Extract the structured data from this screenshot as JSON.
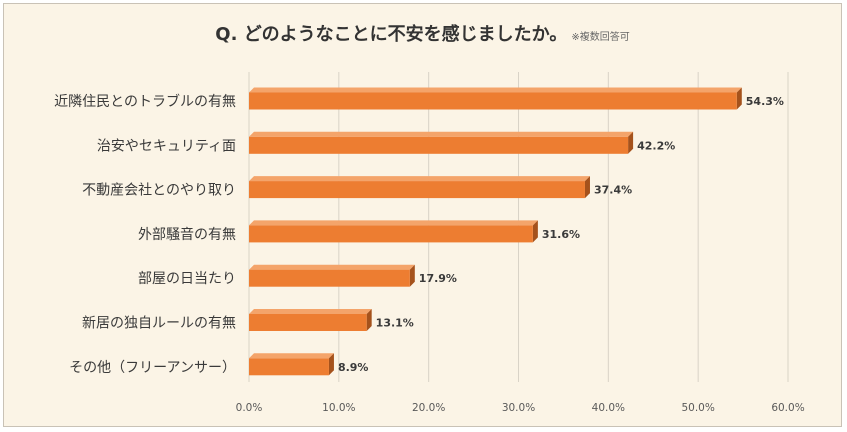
{
  "chart_data": {
    "type": "bar",
    "orientation": "horizontal",
    "title": "Q. どのようなことに不安を感じましたか。",
    "note": "※複数回答可",
    "categories": [
      "近隣住民とのトラブルの有無",
      "治安やセキュリティ面",
      "不動産会社とのやり取り",
      "外部騒音の有無",
      "部屋の日当たり",
      "新居の独自ルールの有無",
      "その他（フリーアンサー）"
    ],
    "values": [
      54.3,
      42.2,
      37.4,
      31.6,
      17.9,
      13.1,
      8.9
    ],
    "value_labels": [
      "54.3%",
      "42.2%",
      "37.4%",
      "31.6%",
      "17.9%",
      "13.1%",
      "8.9%"
    ],
    "xlim": [
      0,
      60
    ],
    "xticks": [
      "0.0%",
      "10.0%",
      "20.0%",
      "30.0%",
      "40.0%",
      "50.0%",
      "60.0%"
    ],
    "grid": true,
    "bar_color": "#ed7d31",
    "bar_side_color": "#a5521c"
  }
}
